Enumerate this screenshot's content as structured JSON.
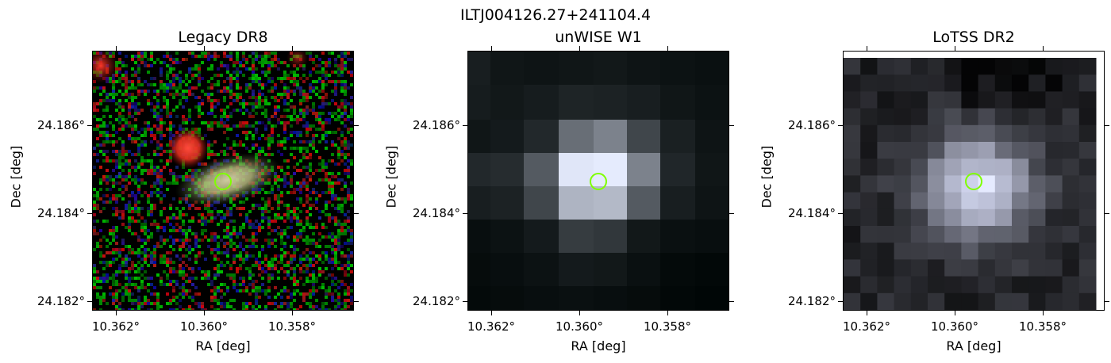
{
  "figure": {
    "title": "ILTJ004126.27+241104.4"
  },
  "panels": [
    {
      "title": "Legacy DR8",
      "xlabel": "RA [deg]",
      "ylabel": "Dec [deg]",
      "xticks": [
        "10.362°",
        "10.360°",
        "10.358°"
      ],
      "yticks": [
        "24.186°",
        "24.184°",
        "24.182°"
      ]
    },
    {
      "title": "unWISE W1",
      "xlabel": "RA [deg]",
      "ylabel": "Dec [deg]",
      "xticks": [
        "10.362°",
        "10.360°",
        "10.358°"
      ],
      "yticks": [
        "24.186°",
        "24.184°",
        "24.182°"
      ]
    },
    {
      "title": "LoTSS DR2",
      "xlabel": "RA [deg]",
      "ylabel": "Dec [deg]",
      "xticks": [
        "10.362°",
        "10.360°",
        "10.358°"
      ],
      "yticks": [
        "24.186°",
        "24.184°",
        "24.182°"
      ]
    }
  ],
  "marker": {
    "shape": "circle",
    "color": "#7fff00"
  }
}
